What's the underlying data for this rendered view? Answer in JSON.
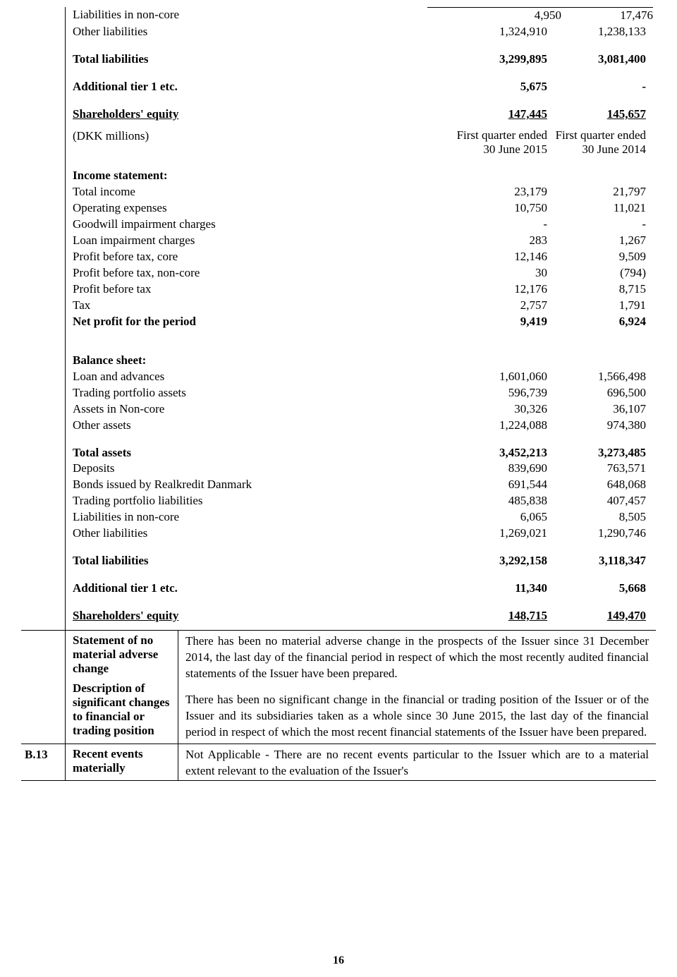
{
  "section_top": {
    "rows": [
      {
        "label": "Liabilities in non-core",
        "c1": "4,950",
        "c2": "17,476",
        "bold": false,
        "under": false,
        "topline2": true
      },
      {
        "label": "Other liabilities",
        "c1": "1,324,910",
        "c2": "1,238,133",
        "bold": false,
        "under": false
      }
    ],
    "total_liab": {
      "label": "Total liabilities",
      "c1": "3,299,895",
      "c2": "3,081,400"
    },
    "add_tier": {
      "label": "Additional tier 1 etc.",
      "c1": "5,675",
      "c2": "-"
    },
    "sh_equity": {
      "label": "Shareholders' equity",
      "c1": "147,445",
      "c2": "145,657"
    }
  },
  "header2": {
    "label": "(DKK millions)",
    "c1a": "First quarter ended",
    "c1b": "30 June 2015",
    "c2a": "First quarter ended",
    "c2b": "30 June 2014"
  },
  "income": {
    "heading": "Income statement:",
    "rows": [
      {
        "label": "Total income",
        "c1": "23,179",
        "c2": "21,797"
      },
      {
        "label": "Operating expenses",
        "c1": "10,750",
        "c2": "11,021"
      },
      {
        "label": "Goodwill impairment charges",
        "c1": "-",
        "c2": "-"
      },
      {
        "label": "Loan impairment charges",
        "c1": "283",
        "c2": "1,267"
      },
      {
        "label": "Profit before tax, core",
        "c1": "12,146",
        "c2": "9,509"
      },
      {
        "label": "Profit before tax, non-core",
        "c1": "30",
        "c2": "(794)"
      },
      {
        "label": "Profit before tax",
        "c1": "12,176",
        "c2": "8,715"
      },
      {
        "label": "Tax",
        "c1": "2,757",
        "c2": "1,791"
      }
    ],
    "net": {
      "label": "Net profit for the period",
      "c1": "9,419",
      "c2": "6,924"
    }
  },
  "balance": {
    "heading": "Balance sheet:",
    "rows1": [
      {
        "label": "Loan and advances",
        "c1": "1,601,060",
        "c2": "1,566,498"
      },
      {
        "label": "Trading portfolio assets",
        "c1": "596,739",
        "c2": "696,500"
      },
      {
        "label": "Assets in Non-core",
        "c1": "30,326",
        "c2": "36,107"
      },
      {
        "label": "Other assets",
        "c1": "1,224,088",
        "c2": "974,380"
      }
    ],
    "total_assets": {
      "label": "Total assets",
      "c1": "3,452,213",
      "c2": "3,273,485"
    },
    "rows2": [
      {
        "label": "Deposits",
        "c1": "839,690",
        "c2": "763,571"
      },
      {
        "label": "Bonds issued by Realkredit Danmark",
        "c1": "691,544",
        "c2": "648,068"
      },
      {
        "label": "Trading portfolio liabilities",
        "c1": "485,838",
        "c2": "407,457"
      },
      {
        "label": "Liabilities in non-core",
        "c1": "6,065",
        "c2": "8,505"
      },
      {
        "label": "Other liabilities",
        "c1": "1,269,021",
        "c2": "1,290,746"
      }
    ],
    "total_liab": {
      "label": "Total liabilities",
      "c1": "3,292,158",
      "c2": "3,118,347"
    },
    "add_tier": {
      "label": "Additional tier 1 etc.",
      "c1": "11,340",
      "c2": "5,668"
    },
    "sh_equity": {
      "label": "Shareholders' equity",
      "c1": "148,715",
      "c2": "149,470"
    }
  },
  "statement_block": {
    "desc1": "Statement of no material adverse change",
    "desc2": "Description of significant changes to financial or trading position",
    "para1": "There has been no material adverse change in the prospects of the Issuer since 31 December 2014, the last day of the financial period in respect of which the most recently audited financial statements of the Issuer have been prepared.",
    "para2": "There has been no significant change in the financial or trading position of the Issuer or of the Issuer and its subsidiaries taken as a whole since 30 June 2015, the last day of the financial period in respect of which the most recent financial statements of the Issuer have been prepared."
  },
  "b13": {
    "code": "B.13",
    "desc": "Recent events materially",
    "body": "Not Applicable - There are no recent events particular to the Issuer which are to a material extent relevant to the evaluation of the Issuer's"
  },
  "page_number": "16"
}
